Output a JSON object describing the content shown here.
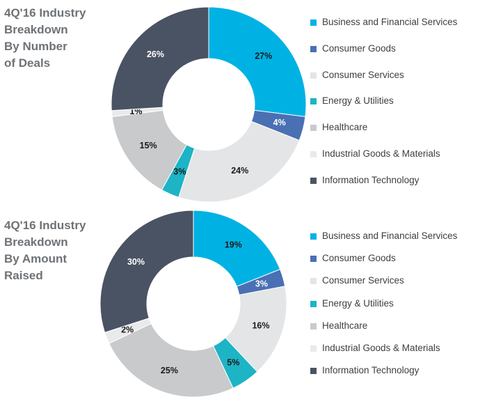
{
  "chart_data": [
    {
      "type": "pie",
      "title": "4Q'16 Industry Breakdown By Number of Deals",
      "title_lines": [
        "4Q'16 Industry",
        "Breakdown",
        "By Number",
        "of Deals"
      ],
      "hole": "donut",
      "legend_position": "right",
      "slices": [
        {
          "name": "Business and Financial Services",
          "value": 27,
          "label": "27%",
          "color": "#00b2e3"
        },
        {
          "name": "Consumer Goods",
          "value": 4,
          "label": "4%",
          "color": "#4a70b4"
        },
        {
          "name": "Consumer Services",
          "value": 24,
          "label": "24%",
          "color": "#e4e5e6"
        },
        {
          "name": "Energy & Utilities",
          "value": 3,
          "label": "3%",
          "color": "#1db4c5"
        },
        {
          "name": "Healthcare",
          "value": 15,
          "label": "15%",
          "color": "#c9cacb"
        },
        {
          "name": "Industrial Goods & Materials",
          "value": 1,
          "label": "1%",
          "color": "#e9eaeb"
        },
        {
          "name": "Information Technology",
          "value": 26,
          "label": "26%",
          "color": "#4a5363"
        }
      ]
    },
    {
      "type": "pie",
      "title": "4Q'16 Industry Breakdown By Amount Raised",
      "title_lines": [
        "4Q'16 Industry",
        "Breakdown",
        "By Amount",
        "Raised"
      ],
      "hole": "donut",
      "legend_position": "right",
      "slices": [
        {
          "name": "Business and Financial Services",
          "value": 19,
          "label": "19%",
          "color": "#00b2e3"
        },
        {
          "name": "Consumer Goods",
          "value": 3,
          "label": "3%",
          "color": "#4a70b4"
        },
        {
          "name": "Consumer Services",
          "value": 16,
          "label": "16%",
          "color": "#e4e5e6"
        },
        {
          "name": "Energy & Utilities",
          "value": 5,
          "label": "5%",
          "color": "#1db4c5"
        },
        {
          "name": "Healthcare",
          "value": 25,
          "label": "25%",
          "color": "#c9cacb"
        },
        {
          "name": "Industrial Goods & Materials",
          "value": 2,
          "label": "2%",
          "color": "#e9eaeb"
        },
        {
          "name": "Information Technology",
          "value": 30,
          "label": "30%",
          "color": "#4a5363"
        }
      ]
    }
  ]
}
